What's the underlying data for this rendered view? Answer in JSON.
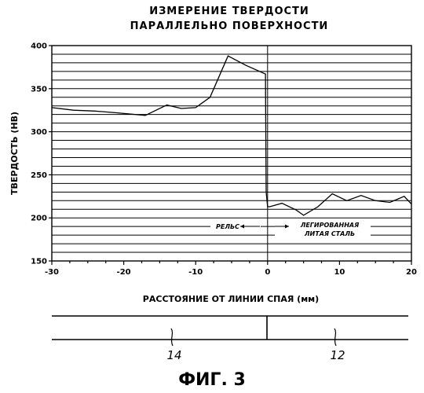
{
  "chart_data": {
    "type": "line",
    "title_lines": [
      "ИЗМЕРЕНИЕ ТВЕРДОСТИ",
      "ПАРАЛЛЕЛЬНО ПОВЕРХНОСТИ"
    ],
    "xlabel": "РАССТОЯНИЕ ОТ ЛИНИИ СПАЯ (мм)",
    "ylabel": "ТВЕРДОСТЬ (НВ)",
    "xlim": [
      -30,
      20
    ],
    "ylim": [
      150,
      400
    ],
    "x_ticks": [
      -30,
      -20,
      -10,
      0,
      10,
      20
    ],
    "y_ticks": [
      150,
      200,
      250,
      300,
      350,
      400
    ],
    "grid": true,
    "x": [
      -30,
      -27,
      -24,
      -21,
      -17,
      -15.5,
      -14,
      -12,
      -10,
      -8,
      -5.5,
      -3,
      -0.3,
      -0.2,
      0,
      0.3,
      2,
      4,
      5,
      7,
      9,
      11,
      13,
      15,
      17,
      19,
      20
    ],
    "y": [
      328,
      325,
      324,
      322,
      319,
      325,
      331,
      327,
      328,
      340,
      388,
      377,
      367,
      230,
      213,
      213,
      217,
      209,
      203,
      213,
      228,
      220,
      226,
      220,
      218,
      225,
      216
    ],
    "annotations": {
      "left_region": "РЕЛЬС",
      "right_region_line1": "ЛЕГИРОВАННАЯ",
      "right_region_line2": "ЛИТАЯ СТАЛЬ"
    }
  },
  "diagram": {
    "ref_left": "14",
    "ref_right": "12"
  },
  "figure_caption": "ФИГ. 3"
}
